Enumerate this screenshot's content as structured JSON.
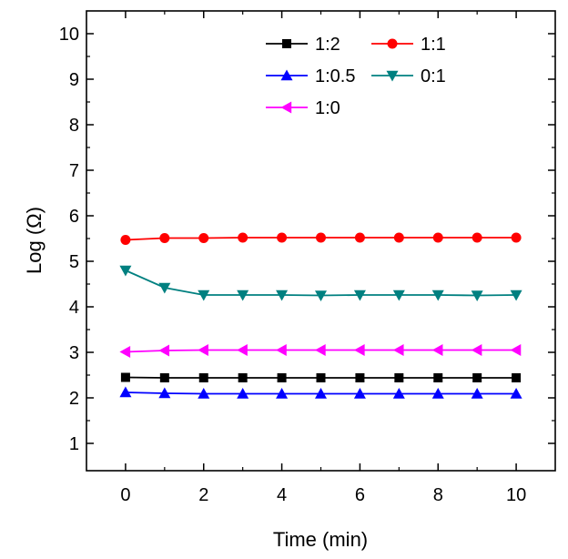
{
  "chart_data": {
    "type": "line",
    "title": "",
    "xlabel": "Time (min)",
    "ylabel": "Log (Ω)",
    "xlim": [
      -1,
      11
    ],
    "ylim": [
      0.4,
      10.5
    ],
    "x_ticks": [
      0,
      2,
      4,
      6,
      8,
      10
    ],
    "y_ticks": [
      1,
      2,
      3,
      4,
      5,
      6,
      7,
      8,
      9,
      10
    ],
    "x": [
      0,
      1,
      2,
      3,
      4,
      5,
      6,
      7,
      8,
      9,
      10
    ],
    "grid": false,
    "legend_position": "top-right",
    "series": [
      {
        "name": "1:2",
        "color": "#000000",
        "marker": "square",
        "values": [
          2.45,
          2.44,
          2.44,
          2.44,
          2.44,
          2.44,
          2.44,
          2.44,
          2.44,
          2.44,
          2.44
        ]
      },
      {
        "name": "1:1",
        "color": "#ff0000",
        "marker": "circle",
        "values": [
          5.47,
          5.51,
          5.51,
          5.52,
          5.52,
          5.52,
          5.52,
          5.52,
          5.52,
          5.52,
          5.52
        ]
      },
      {
        "name": "1:0.5",
        "color": "#0000ff",
        "marker": "triangle-up",
        "values": [
          2.12,
          2.1,
          2.09,
          2.09,
          2.09,
          2.09,
          2.09,
          2.09,
          2.09,
          2.09,
          2.09
        ]
      },
      {
        "name": "0:1",
        "color": "#008080",
        "marker": "triangle-down",
        "values": [
          4.8,
          4.42,
          4.26,
          4.26,
          4.26,
          4.25,
          4.26,
          4.26,
          4.26,
          4.25,
          4.26
        ]
      },
      {
        "name": "1:0",
        "color": "#ff00ff",
        "marker": "triangle-left",
        "values": [
          3.01,
          3.04,
          3.05,
          3.05,
          3.05,
          3.05,
          3.05,
          3.05,
          3.05,
          3.05,
          3.05
        ]
      }
    ]
  }
}
